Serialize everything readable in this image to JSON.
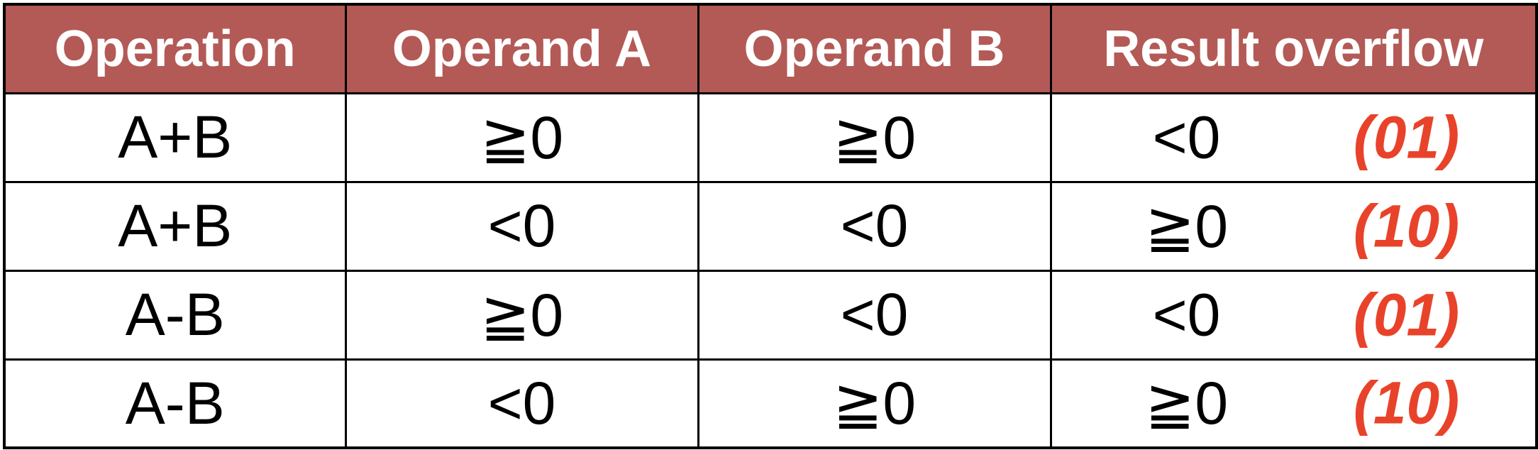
{
  "table": {
    "headers": [
      "Operation",
      "Operand A",
      "Operand B",
      "Result overflow"
    ],
    "rows": [
      {
        "operation": "A+B",
        "operand_a": "≧0",
        "operand_b": "≧0",
        "result": "<0",
        "code": "(01)"
      },
      {
        "operation": "A+B",
        "operand_a": "<0",
        "operand_b": "<0",
        "result": "≧0",
        "code": "(10)"
      },
      {
        "operation": "A-B",
        "operand_a": "≧0",
        "operand_b": "<0",
        "result": "<0",
        "code": "(01)"
      },
      {
        "operation": "A-B",
        "operand_a": "<0",
        "operand_b": "≧0",
        "result": "≧0",
        "code": "(10)"
      }
    ]
  },
  "colors": {
    "header_background": "#b35a56",
    "header_text": "#ffffff",
    "code_text": "#e8432a",
    "border": "#000000"
  }
}
